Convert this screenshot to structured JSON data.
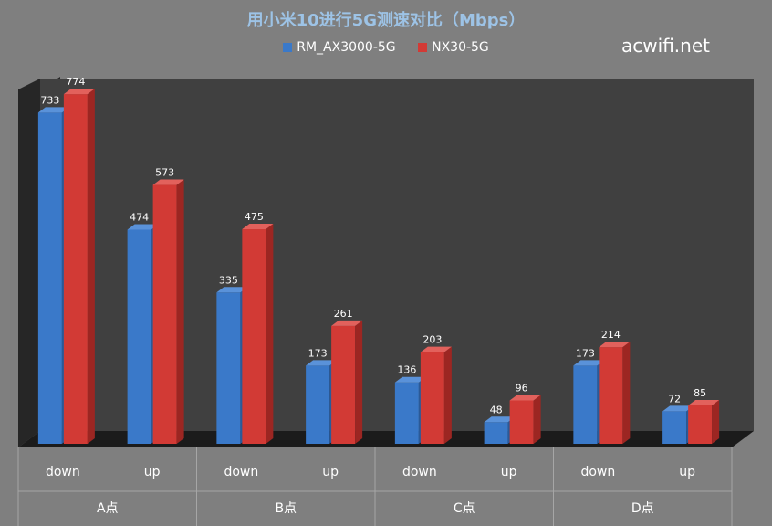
{
  "title": "用小米10进行5G测速对比（Mbps）",
  "watermark": "acwifi.net",
  "colors": {
    "series1": "#3a79c9",
    "series2": "#d23a35",
    "background": "#7f7f7f",
    "plot_area": "#404040",
    "side_wall": "#262626",
    "floor": "#1b1b1b"
  },
  "chart_data": {
    "type": "bar",
    "title": "用小米10进行5G测速对比（Mbps）",
    "categories": [
      "down",
      "up",
      "down",
      "up",
      "down",
      "up",
      "down",
      "up"
    ],
    "groups": [
      "A点",
      "B点",
      "C点",
      "D点"
    ],
    "series": [
      {
        "name": "RM_AX3000-5G",
        "values": [
          733,
          474,
          335,
          173,
          136,
          48,
          173,
          72
        ]
      },
      {
        "name": "NX30-5G",
        "values": [
          774,
          573,
          475,
          261,
          203,
          96,
          214,
          85
        ]
      }
    ],
    "ylim": [
      0,
      800
    ],
    "grid": false,
    "legend": "top"
  }
}
